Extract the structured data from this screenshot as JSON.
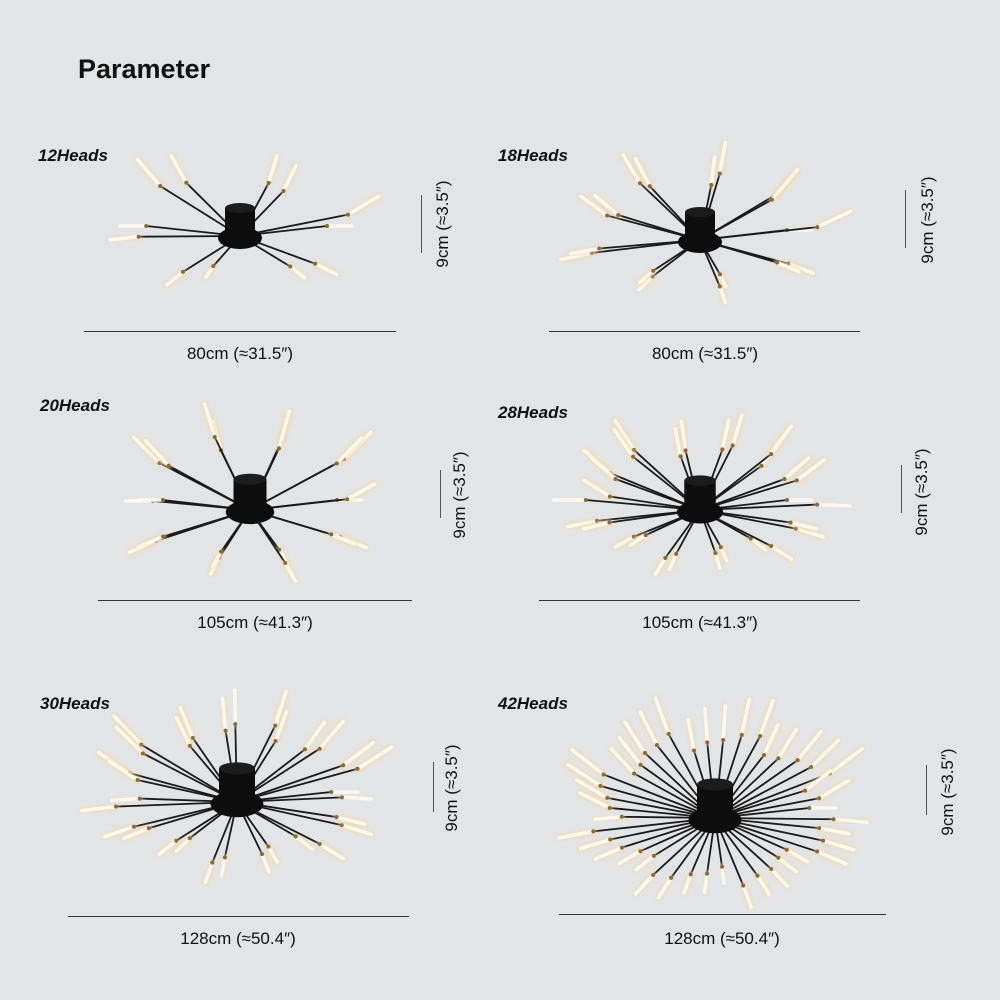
{
  "title": "Parameter",
  "colors": {
    "background": "#e3e4e6",
    "arm": "#1a1a1a",
    "rod": "#fdf8ee",
    "glow": "#f3d9a8",
    "joint": "#8a6a3a"
  },
  "variants": [
    {
      "label": "12Heads",
      "heads": 12,
      "width": "80cm (≈31.5″)",
      "height": "9cm (≈3.5″)"
    },
    {
      "label": "18Heads",
      "heads": 18,
      "width": "80cm (≈31.5″)",
      "height": "9cm (≈3.5″)"
    },
    {
      "label": "20Heads",
      "heads": 20,
      "width": "105cm (≈41.3″)",
      "height": "9cm (≈3.5″)"
    },
    {
      "label": "28Heads",
      "heads": 28,
      "width": "105cm (≈41.3″)",
      "height": "9cm (≈3.5″)"
    },
    {
      "label": "30Heads",
      "heads": 30,
      "width": "128cm (≈50.4″)",
      "height": "9cm (≈3.5″)"
    },
    {
      "label": "42Heads",
      "heads": 42,
      "width": "128cm (≈50.4″)",
      "height": "9cm (≈3.5″)"
    }
  ]
}
